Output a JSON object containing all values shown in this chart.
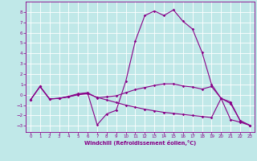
{
  "xlabel": "Windchill (Refroidissement éolien,°C)",
  "xlim": [
    -0.5,
    23.5
  ],
  "ylim": [
    -3.6,
    9.0
  ],
  "yticks": [
    -3,
    -2,
    -1,
    0,
    1,
    2,
    3,
    4,
    5,
    6,
    7,
    8
  ],
  "xticks": [
    0,
    1,
    2,
    3,
    4,
    5,
    6,
    7,
    8,
    9,
    10,
    11,
    12,
    13,
    14,
    15,
    16,
    17,
    18,
    19,
    20,
    21,
    22,
    23
  ],
  "bg_color": "#c0e8e8",
  "grid_color": "#ffffff",
  "line_color": "#880088",
  "line1_y": [
    -0.5,
    0.8,
    -0.4,
    -0.35,
    -0.2,
    0.05,
    0.15,
    -2.9,
    -1.85,
    -1.5,
    1.3,
    5.2,
    7.65,
    8.1,
    7.65,
    8.2,
    7.1,
    6.35,
    4.1,
    1.0,
    -0.35,
    -0.85,
    -2.5,
    -2.95
  ],
  "line2_y": [
    -0.5,
    0.8,
    -0.4,
    -0.35,
    -0.15,
    0.1,
    0.2,
    -0.3,
    -0.2,
    -0.1,
    0.2,
    0.5,
    0.7,
    0.9,
    1.05,
    1.05,
    0.85,
    0.75,
    0.55,
    0.8,
    -0.35,
    -0.7,
    -2.5,
    -2.95
  ],
  "line3_y": [
    -0.5,
    0.8,
    -0.4,
    -0.35,
    -0.2,
    0.0,
    0.1,
    -0.25,
    -0.5,
    -0.75,
    -1.0,
    -1.2,
    -1.4,
    -1.55,
    -1.7,
    -1.8,
    -1.9,
    -2.0,
    -2.1,
    -2.2,
    -0.35,
    -2.4,
    -2.65,
    -2.95
  ]
}
